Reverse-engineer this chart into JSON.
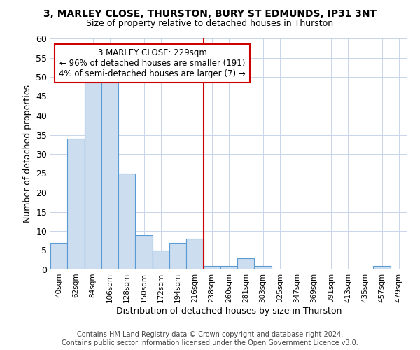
{
  "title": "3, MARLEY CLOSE, THURSTON, BURY ST EDMUNDS, IP31 3NT",
  "subtitle": "Size of property relative to detached houses in Thurston",
  "xlabel": "Distribution of detached houses by size in Thurston",
  "ylabel": "Number of detached properties",
  "bar_labels": [
    "40sqm",
    "62sqm",
    "84sqm",
    "106sqm",
    "128sqm",
    "150sqm",
    "172sqm",
    "194sqm",
    "216sqm",
    "238sqm",
    "260sqm",
    "281sqm",
    "303sqm",
    "325sqm",
    "347sqm",
    "369sqm",
    "391sqm",
    "413sqm",
    "435sqm",
    "457sqm",
    "479sqm"
  ],
  "bar_values": [
    7,
    34,
    49,
    49,
    25,
    9,
    5,
    7,
    8,
    1,
    1,
    3,
    1,
    0,
    0,
    0,
    0,
    0,
    0,
    1,
    0
  ],
  "bar_color": "#ccddf0",
  "bar_edge_color": "#5b9bd5",
  "vline_x_index": 8.5,
  "annotation_title": "3 MARLEY CLOSE: 229sqm",
  "annotation_line1": "← 96% of detached houses are smaller (191)",
  "annotation_line2": "4% of semi-detached houses are larger (7) →",
  "vline_color": "#cc0000",
  "annotation_box_edge_color": "#cc0000",
  "ylim": [
    0,
    60
  ],
  "yticks": [
    0,
    5,
    10,
    15,
    20,
    25,
    30,
    35,
    40,
    45,
    50,
    55,
    60
  ],
  "background_color": "#ffffff",
  "grid_color": "#c8d4e8",
  "footer1": "Contains HM Land Registry data © Crown copyright and database right 2024.",
  "footer2": "Contains public sector information licensed under the Open Government Licence v3.0."
}
